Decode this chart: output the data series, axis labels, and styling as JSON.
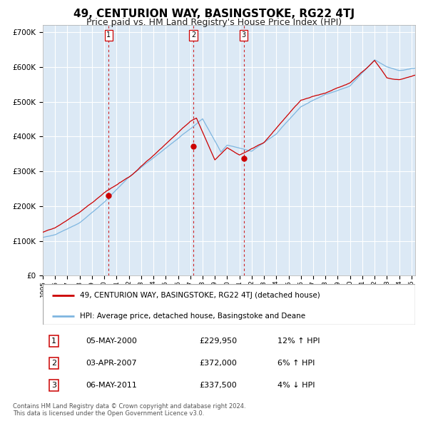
{
  "title": "49, CENTURION WAY, BASINGSTOKE, RG22 4TJ",
  "subtitle": "Price paid vs. HM Land Registry's House Price Index (HPI)",
  "footer_line1": "Contains HM Land Registry data © Crown copyright and database right 2024.",
  "footer_line2": "This data is licensed under the Open Government Licence v3.0.",
  "legend_red": "49, CENTURION WAY, BASINGSTOKE, RG22 4TJ (detached house)",
  "legend_blue": "HPI: Average price, detached house, Basingstoke and Deane",
  "transactions": [
    {
      "num": 1,
      "date": "05-MAY-2000",
      "price": "£229,950",
      "change": "12% ↑ HPI",
      "year": 2000.35
    },
    {
      "num": 2,
      "date": "03-APR-2007",
      "price": "£372,000",
      "change": "6% ↑ HPI",
      "year": 2007.25
    },
    {
      "num": 3,
      "date": "06-MAY-2011",
      "price": "£337,500",
      "change": "4% ↓ HPI",
      "year": 2011.35
    }
  ],
  "transaction_values": [
    229950,
    372000,
    337500
  ],
  "ylim": [
    0,
    720000
  ],
  "yticks": [
    0,
    100000,
    200000,
    300000,
    400000,
    500000,
    600000,
    700000
  ],
  "plot_bg": "#dce9f5",
  "grid_color": "#ffffff",
  "red_color": "#cc0000",
  "blue_color": "#7eb6e0",
  "title_fontsize": 11,
  "subtitle_fontsize": 9
}
